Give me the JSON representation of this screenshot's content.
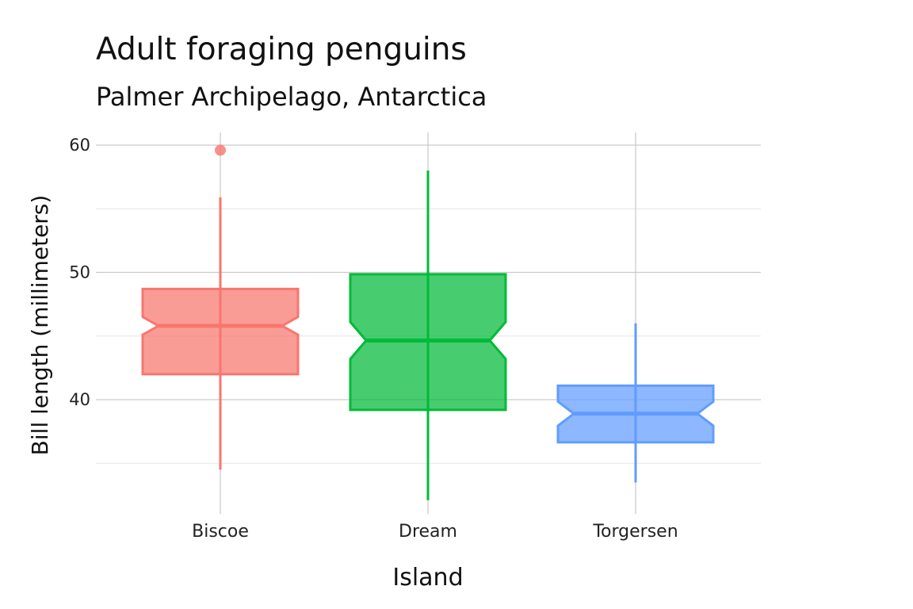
{
  "chart_data": {
    "type": "boxplot",
    "title": "Adult foraging penguins",
    "subtitle": "Palmer Archipelago, Antarctica",
    "xlabel": "Island",
    "ylabel": "Bill length (millimeters)",
    "ylim": [
      31,
      61
    ],
    "yticks": [
      40,
      50,
      60
    ],
    "grid": true,
    "notched": true,
    "colors": {
      "Biscoe": "#F8766D",
      "Dream": "#00BA38",
      "Torgersen": "#619CFF"
    },
    "categories": [
      "Biscoe",
      "Dream",
      "Torgersen"
    ],
    "boxes": [
      {
        "category": "Biscoe",
        "whisker_low": 34.5,
        "q1": 42.0,
        "median": 45.8,
        "q3": 48.7,
        "whisker_high": 55.9,
        "notch_low": 45.1,
        "notch_high": 46.5,
        "outliers": [
          59.6
        ]
      },
      {
        "category": "Dream",
        "whisker_low": 32.1,
        "q1": 39.2,
        "median": 44.65,
        "q3": 49.85,
        "whisker_high": 58.0,
        "notch_low": 43.2,
        "notch_high": 46.1,
        "outliers": []
      },
      {
        "category": "Torgersen",
        "whisker_low": 33.5,
        "q1": 36.65,
        "median": 38.9,
        "q3": 41.1,
        "whisker_high": 46.0,
        "notch_low": 37.95,
        "notch_high": 39.85,
        "outliers": []
      }
    ]
  }
}
